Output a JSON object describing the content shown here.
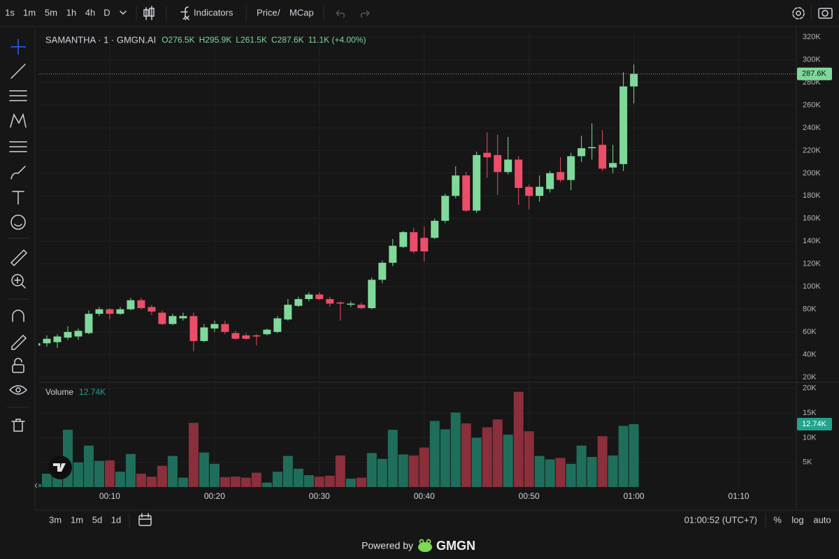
{
  "toolbar": {
    "intervals": [
      "1s",
      "1m",
      "5m",
      "1h",
      "4h",
      "D"
    ],
    "indicators": "Indicators",
    "price": "Price",
    "separator": "/",
    "mcap": "MCap"
  },
  "chart_data": {
    "type": "candlestick",
    "symbol": "SAMANTHA · 1 · GMGN.AI",
    "ohlc_header": [
      "O276.5K",
      "H295.9K",
      "L261.5K",
      "C287.6K",
      "11.1K (+4.00%)"
    ],
    "x": [
      3,
      4,
      5,
      6,
      7,
      8,
      9,
      10,
      11,
      12,
      13,
      14,
      15,
      16,
      17,
      18,
      19,
      20,
      21,
      22,
      23,
      24,
      25,
      26,
      27,
      28,
      29,
      30,
      31,
      32,
      33,
      34,
      35,
      36,
      37,
      38,
      39,
      40,
      41,
      42,
      43,
      44,
      45,
      46,
      47,
      48,
      49,
      50,
      51,
      52,
      53,
      54,
      55,
      56,
      57,
      58,
      59,
      60
    ],
    "open": [
      48,
      50,
      51,
      55,
      56,
      59,
      76,
      80,
      76,
      80,
      88,
      82,
      77,
      67,
      72,
      74,
      52,
      63,
      67,
      59,
      57,
      57,
      58,
      60,
      71,
      83,
      89,
      93,
      89,
      86,
      84,
      84,
      81,
      106,
      121,
      135,
      148,
      143,
      143,
      158,
      180,
      198,
      167,
      218,
      216,
      201,
      212,
      188,
      180,
      186,
      201,
      194,
      215,
      222,
      225,
      205,
      208,
      276.5
    ],
    "high": [
      52,
      57,
      58,
      65,
      63,
      79,
      82,
      81,
      82,
      90,
      90,
      84,
      79,
      76,
      77,
      77,
      67,
      70,
      70,
      61,
      59,
      58,
      63,
      74,
      89,
      91,
      95,
      95,
      91,
      87,
      87,
      86,
      108,
      123,
      142,
      149,
      152,
      153,
      160,
      182,
      206,
      201,
      219,
      236,
      234,
      232,
      215,
      190,
      198,
      202,
      214,
      218,
      233,
      244,
      238,
      225,
      289,
      295.9
    ],
    "low": [
      47,
      47,
      46,
      53,
      53,
      58,
      74,
      71,
      75,
      79,
      80,
      75,
      66,
      66,
      70,
      43,
      51,
      60,
      58,
      53,
      53,
      48,
      57,
      59,
      70,
      82,
      87,
      88,
      82,
      70,
      82,
      80,
      80,
      103,
      118,
      134,
      129,
      122,
      142,
      156,
      178,
      166,
      165,
      196,
      181,
      199,
      172,
      168,
      175,
      183,
      192,
      185,
      210,
      212,
      202,
      200,
      202,
      261.5
    ],
    "close": [
      50,
      54,
      56,
      60,
      61,
      76,
      80,
      76,
      80,
      88,
      81,
      78,
      67,
      74,
      74,
      52,
      64,
      67,
      60,
      54,
      54,
      56,
      62,
      72,
      84,
      89,
      93,
      89,
      85,
      85,
      85,
      81,
      106,
      121,
      136,
      148,
      131,
      131,
      158,
      180,
      198,
      167,
      216,
      214,
      201,
      212,
      187,
      180,
      188,
      200,
      194,
      215,
      222,
      223,
      204,
      209,
      276.5,
      287.6
    ],
    "up_color": "#7fd99a",
    "down_color": "#ec4d68",
    "xlim": [
      3.2,
      75.5
    ],
    "xticks": [
      {
        "value": 10,
        "label": "00:10"
      },
      {
        "value": 20,
        "label": "00:20"
      },
      {
        "value": 30,
        "label": "00:30"
      },
      {
        "value": 40,
        "label": "00:40"
      },
      {
        "value": 50,
        "label": "00:50"
      },
      {
        "value": 60,
        "label": "01:00"
      },
      {
        "value": 70,
        "label": "01:10"
      }
    ],
    "ylim": [
      16.9,
      325
    ],
    "yticks": [
      {
        "value": 20,
        "label": "20K"
      },
      {
        "value": 40,
        "label": "40K"
      },
      {
        "value": 60,
        "label": "60K"
      },
      {
        "value": 80,
        "label": "80K"
      },
      {
        "value": 100,
        "label": "100K"
      },
      {
        "value": 120,
        "label": "120K"
      },
      {
        "value": 140,
        "label": "140K"
      },
      {
        "value": 160,
        "label": "160K"
      },
      {
        "value": 180,
        "label": "180K"
      },
      {
        "value": 200,
        "label": "200K"
      },
      {
        "value": 220,
        "label": "220K"
      },
      {
        "value": 240,
        "label": "240K"
      },
      {
        "value": 260,
        "label": "260K"
      },
      {
        "value": 280,
        "label": "280K"
      },
      {
        "value": 300,
        "label": "300K"
      },
      {
        "value": 320,
        "label": "320K"
      }
    ],
    "grid": true,
    "last_price": {
      "value": 287.6,
      "label": "287.6K"
    },
    "volume": {
      "name": "Volume",
      "values": [
        0.6,
        2.7,
        3.5,
        11.6,
        5.0,
        8.4,
        5.3,
        5.4,
        3.1,
        6.7,
        2.7,
        2.1,
        4.3,
        6.3,
        1.9,
        13.0,
        7.0,
        4.7,
        2.0,
        2.1,
        1.9,
        2.9,
        0.9,
        3.1,
        6.3,
        3.7,
        2.4,
        2.1,
        2.3,
        6.4,
        1.7,
        1.9,
        6.9,
        5.7,
        11.6,
        6.6,
        6.4,
        8.0,
        13.4,
        11.7,
        15.1,
        12.9,
        10.0,
        12.1,
        13.7,
        10.6,
        19.3,
        11.3,
        6.3,
        5.6,
        5.9,
        4.7,
        8.4,
        6.1,
        10.3,
        6.4,
        12.4,
        12.74
      ],
      "up_color": "#1f6e5c",
      "down_color": "#8a2f3b",
      "tag_color": "#22a38e",
      "ylim": [
        0,
        21.1
      ],
      "yticks": [
        {
          "value": 5,
          "label": "5K"
        },
        {
          "value": 10,
          "label": "10K"
        },
        {
          "value": 15,
          "label": "15K"
        },
        {
          "value": 20,
          "label": "20K"
        }
      ],
      "last": {
        "value": 12.74,
        "label": "12.74K"
      }
    }
  },
  "footer": {
    "ranges": [
      "3m",
      "1m",
      "5d",
      "1d"
    ],
    "clock": "01:00:52 (UTC+7)",
    "options": [
      "%",
      "log",
      "auto"
    ],
    "powered_by": "Powered by",
    "brand": "GMGN"
  }
}
